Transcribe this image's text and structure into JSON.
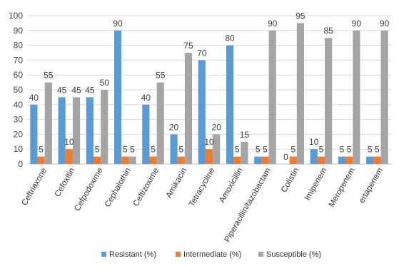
{
  "chart_data": {
    "type": "bar",
    "categories": [
      "Ceftriaxone",
      "Cefoxitin",
      "Cefpodoxime",
      "Cephalothin",
      "Ceftizoxime",
      "Amikacin",
      "Tetracycline",
      "Amoxicillin",
      "Piperacillin/tazobactam",
      "Colistin",
      "Imipenem",
      "Meropenem",
      "ertapenem"
    ],
    "series": [
      {
        "name": "Resistant (%)",
        "color": "#5b9bd5",
        "values": [
          40,
          45,
          45,
          90,
          40,
          20,
          70,
          80,
          5,
          0,
          10,
          5,
          5
        ]
      },
      {
        "name": "Intermediate (%)",
        "color": "#ed7d31",
        "values": [
          5,
          10,
          5,
          5,
          5,
          5,
          10,
          5,
          5,
          5,
          5,
          5,
          5
        ]
      },
      {
        "name": "Susceptible (%)",
        "color": "#a5a5a5",
        "values": [
          55,
          45,
          50,
          5,
          55,
          75,
          20,
          15,
          90,
          95,
          85,
          90,
          90
        ]
      }
    ],
    "ylim": [
      0,
      100
    ],
    "yticks": [
      0,
      10,
      20,
      30,
      40,
      50,
      60,
      70,
      80,
      90,
      100
    ],
    "grid": true,
    "legend": "bottom",
    "data_labels": true
  }
}
